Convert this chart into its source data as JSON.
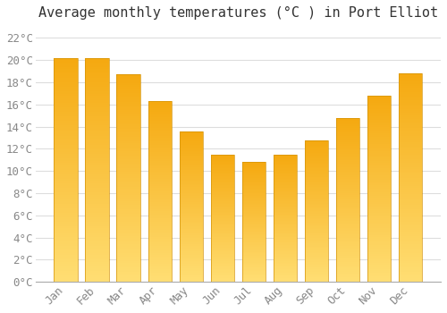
{
  "title": "Average monthly temperatures (°C ) in Port Elliot",
  "months": [
    "Jan",
    "Feb",
    "Mar",
    "Apr",
    "May",
    "Jun",
    "Jul",
    "Aug",
    "Sep",
    "Oct",
    "Nov",
    "Dec"
  ],
  "values": [
    20.2,
    20.2,
    18.7,
    16.3,
    13.6,
    11.5,
    10.8,
    11.5,
    12.8,
    14.8,
    16.8,
    18.8
  ],
  "bar_color_top": "#F5A800",
  "bar_color_bottom": "#FFD966",
  "bar_edge_color": "#DDDDDD",
  "background_color": "#FFFFFF",
  "grid_color": "#DDDDDD",
  "ylim": [
    0,
    23
  ],
  "yticks": [
    0,
    2,
    4,
    6,
    8,
    10,
    12,
    14,
    16,
    18,
    20,
    22
  ],
  "title_fontsize": 11,
  "tick_fontsize": 9,
  "tick_color": "#888888",
  "bar_width": 0.75
}
